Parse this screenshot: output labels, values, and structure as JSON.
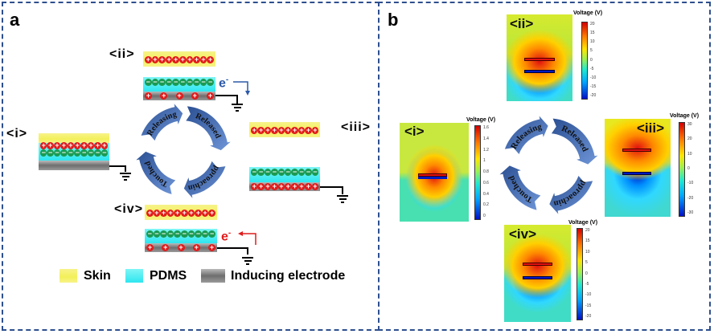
{
  "panels": {
    "a": "a",
    "b": "b"
  },
  "states": {
    "i": "<i>",
    "ii": "<ii>",
    "iii": "<iii>",
    "iv": "<iv>"
  },
  "charges": {
    "plus": "+",
    "minus": "−"
  },
  "electron": {
    "symbol": "e",
    "superscript": "-"
  },
  "cycle": {
    "releasing": "Releasing",
    "released": "Released",
    "approaching": "Approaching",
    "touched": "Touched"
  },
  "legend": {
    "skin": "Skin",
    "pdms": "PDMS",
    "electrode": "Inducing electrode"
  },
  "colors": {
    "frame": "#2d4f8e",
    "skin": "#f3f05a",
    "pdms": "#2ee6f0",
    "electrode": "#7a7a7a",
    "positive": "#e11b1b",
    "negative": "#1c9a52",
    "arrow": "#3a62a8",
    "electron_out": "#2d5aa8",
    "electron_in": "#e11b1b"
  },
  "colorbars": {
    "title": "Voltage (V)",
    "i": [
      "1.6",
      "1.4",
      "1.2",
      "1",
      "0.8",
      "0.6",
      "0.4",
      "0.2",
      "0"
    ],
    "ii": [
      "20",
      "15",
      "10",
      "5",
      "0",
      "-5",
      "-10",
      "-15",
      "-20"
    ],
    "iii": [
      "30",
      "20",
      "10",
      "0",
      "-10",
      "-20",
      "-30"
    ],
    "iv": [
      "20",
      "15",
      "10",
      "5",
      "0",
      "-5",
      "-10",
      "-15",
      "-20"
    ]
  }
}
